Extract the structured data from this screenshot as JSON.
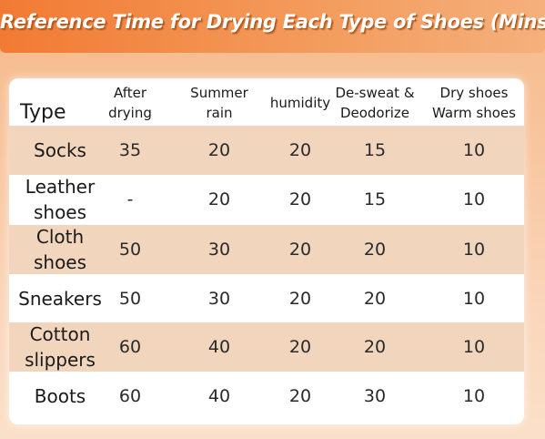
{
  "title": "Reference Time for Drying Each Type of Shoes (Mins)",
  "table": {
    "header": {
      "type": "Type",
      "columns": [
        "After\ndrying",
        "Summer\nrain",
        "humidity",
        "De-sweat &\nDeodorize",
        "Dry shoes\nWarm shoes"
      ]
    },
    "rows": [
      {
        "type": "Socks",
        "values": [
          "35",
          "20",
          "20",
          "15",
          "10"
        ]
      },
      {
        "type": "Leather\nshoes",
        "values": [
          "-",
          "20",
          "20",
          "15",
          "10"
        ]
      },
      {
        "type": "Cloth\nshoes",
        "values": [
          "50",
          "30",
          "20",
          "20",
          "10"
        ]
      },
      {
        "type": "Sneakers",
        "values": [
          "50",
          "30",
          "20",
          "20",
          "10"
        ]
      },
      {
        "type": "Cotton\nslippers",
        "values": [
          "60",
          "40",
          "20",
          "20",
          "10"
        ]
      },
      {
        "type": "Boots",
        "values": [
          "60",
          "40",
          "20",
          "30",
          "10"
        ]
      }
    ]
  },
  "colors": {
    "banner": "#f27a33",
    "row_shade": "#f2d5bd",
    "card": "#ffffff"
  }
}
